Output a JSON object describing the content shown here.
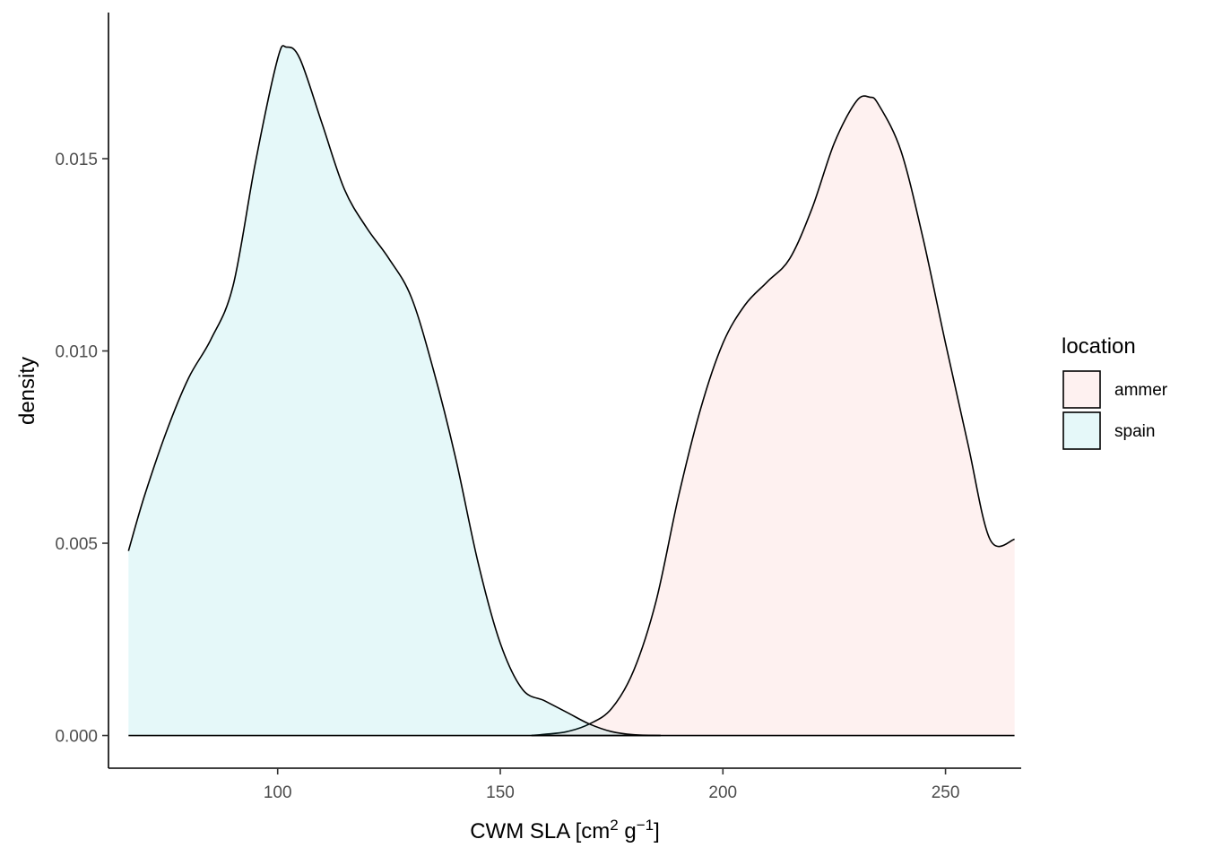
{
  "chart_data": {
    "type": "area",
    "subtype": "density",
    "title": "",
    "xlabel": "CWM SLA [cm² g⁻¹]",
    "xlabel_parts": {
      "base": "CWM SLA [cm",
      "sup1": "2",
      "mid": " g",
      "sup2": "−1",
      "end": "]"
    },
    "ylabel": "density",
    "xlim": [
      62,
      267
    ],
    "ylim": [
      -0.00085,
      0.0188
    ],
    "x_ticks": [
      100,
      150,
      200,
      250
    ],
    "x_tick_labels": [
      "100",
      "150",
      "200",
      "250"
    ],
    "y_ticks": [
      0.0,
      0.005,
      0.01,
      0.015
    ],
    "y_tick_labels": [
      "0.000",
      "0.005",
      "0.010",
      "0.015"
    ],
    "grid": false,
    "legend": {
      "title": "location",
      "position": "right",
      "entries": [
        {
          "label": "ammer",
          "color": "#F8766D"
        },
        {
          "label": "spain",
          "color": "#00BFC4"
        }
      ]
    },
    "fill_alpha": 0.1,
    "series": [
      {
        "name": "ammer",
        "color": "#F8766D",
        "x": [
          157,
          160,
          165,
          170,
          175,
          180,
          185,
          190,
          195,
          200,
          205,
          210,
          215,
          220,
          225,
          230,
          233,
          235,
          240,
          245,
          250,
          255,
          260,
          265.5
        ],
        "y": [
          0.0,
          3e-05,
          0.0001,
          0.0003,
          0.0007,
          0.0017,
          0.0035,
          0.0062,
          0.0085,
          0.0102,
          0.0112,
          0.0118,
          0.0124,
          0.0137,
          0.0154,
          0.0165,
          0.0166,
          0.0164,
          0.0152,
          0.0129,
          0.0102,
          0.0076,
          0.0051,
          0.0051
        ]
      },
      {
        "name": "spain",
        "color": "#00BFC4",
        "x": [
          66.5,
          70,
          75,
          80,
          85,
          90,
          95,
          100,
          102,
          105,
          110,
          115,
          120,
          125,
          130,
          135,
          140,
          145,
          150,
          155,
          160,
          165,
          170,
          175,
          180,
          186
        ],
        "y": [
          0.0048,
          0.0062,
          0.0079,
          0.0093,
          0.0103,
          0.0117,
          0.0149,
          0.0176,
          0.0179,
          0.0176,
          0.0159,
          0.0142,
          0.0132,
          0.0124,
          0.0114,
          0.0095,
          0.0072,
          0.0045,
          0.0024,
          0.0012,
          0.0009,
          0.0006,
          0.0003,
          0.0001,
          2e-05,
          0.0
        ]
      }
    ]
  }
}
